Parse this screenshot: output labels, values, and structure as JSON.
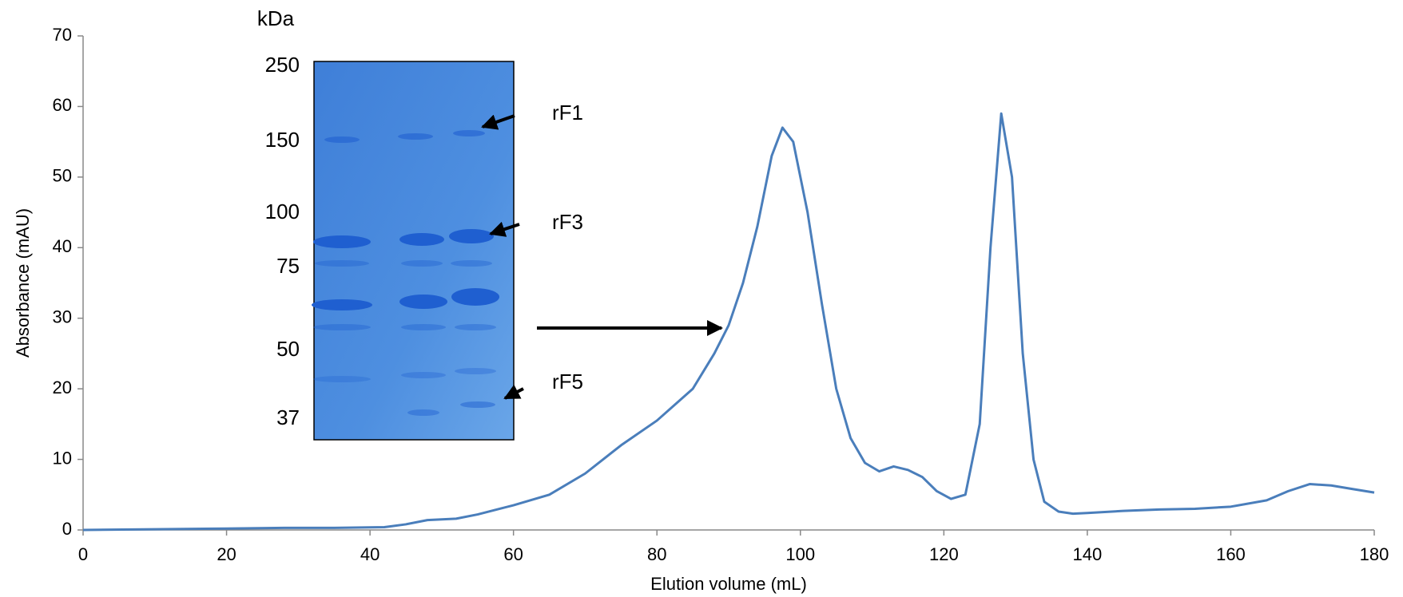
{
  "chart_data": {
    "type": "line",
    "x_label": "Elution volume (mL)",
    "y_label": "Absorbance (mAU)",
    "x": [
      0,
      10,
      20,
      28,
      35,
      42,
      45,
      48,
      52,
      55,
      60,
      65,
      70,
      75,
      80,
      85,
      88,
      90,
      92,
      94,
      96,
      97.5,
      99,
      101,
      103,
      105,
      107,
      109,
      111,
      113,
      115,
      117,
      119,
      121,
      123,
      125,
      126.5,
      128,
      129.5,
      131,
      132.5,
      134,
      136,
      138,
      140,
      145,
      150,
      155,
      160,
      165,
      168,
      171,
      174,
      177,
      180
    ],
    "series": [
      {
        "color": "#4a7ebb",
        "values": [
          0,
          0.1,
          0.2,
          0.3,
          0.3,
          0.4,
          0.8,
          1.4,
          1.6,
          2.2,
          3.5,
          5,
          8,
          12,
          15.5,
          20,
          25,
          29,
          35,
          43,
          53,
          57,
          55,
          45,
          32,
          20,
          13,
          9.5,
          8.3,
          9,
          8.5,
          7.5,
          5.5,
          4.4,
          5,
          15,
          40,
          59,
          50,
          25,
          10,
          4,
          2.6,
          2.3,
          2.4,
          2.7,
          2.9,
          3,
          3.3,
          4.2,
          5.5,
          6.5,
          6.3,
          5.8,
          5.3
        ]
      }
    ],
    "xlim": [
      0,
      180
    ],
    "xticks": [
      0,
      20,
      40,
      60,
      80,
      100,
      120,
      140,
      160,
      180
    ],
    "ylim": [
      0,
      70
    ],
    "yticks": [
      0,
      10,
      20,
      30,
      40,
      50,
      60,
      70
    ],
    "inset": {
      "unit": "kDa",
      "markers": [
        "250",
        "150",
        "100",
        "75",
        "50",
        "37"
      ],
      "labels": [
        "rF1",
        "rF3",
        "rF5"
      ]
    }
  }
}
